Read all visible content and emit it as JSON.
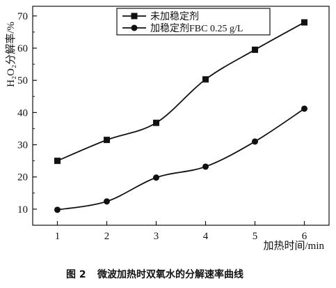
{
  "chart_data": {
    "type": "line",
    "x": [
      1,
      2,
      3,
      4,
      5,
      6
    ],
    "xticks": [
      "1",
      "2",
      "3",
      "4",
      "5",
      "6"
    ],
    "yticks": [
      "10",
      "20",
      "30",
      "40",
      "50",
      "60",
      "70"
    ],
    "xlabel": "加热时间/min",
    "ylabel": "H₂O₂分解率/%",
    "xlim": [
      0.5,
      6.5
    ],
    "ylim": [
      5,
      73
    ],
    "grid": false,
    "legend_position": "top",
    "series": [
      {
        "name": "未加稳定剂",
        "marker": "square",
        "values": [
          25.0,
          31.5,
          36.8,
          50.3,
          59.5,
          68.0
        ]
      },
      {
        "name": "加稳定剂FBC 0.25 g/L",
        "marker": "circle",
        "values": [
          9.8,
          12.4,
          19.8,
          23.2,
          31.0,
          41.2
        ]
      }
    ]
  },
  "caption": {
    "figure_label": "图 2",
    "text": "微波加热时双氧水的分解速率曲线"
  },
  "colors": {
    "ink": "#111111"
  }
}
